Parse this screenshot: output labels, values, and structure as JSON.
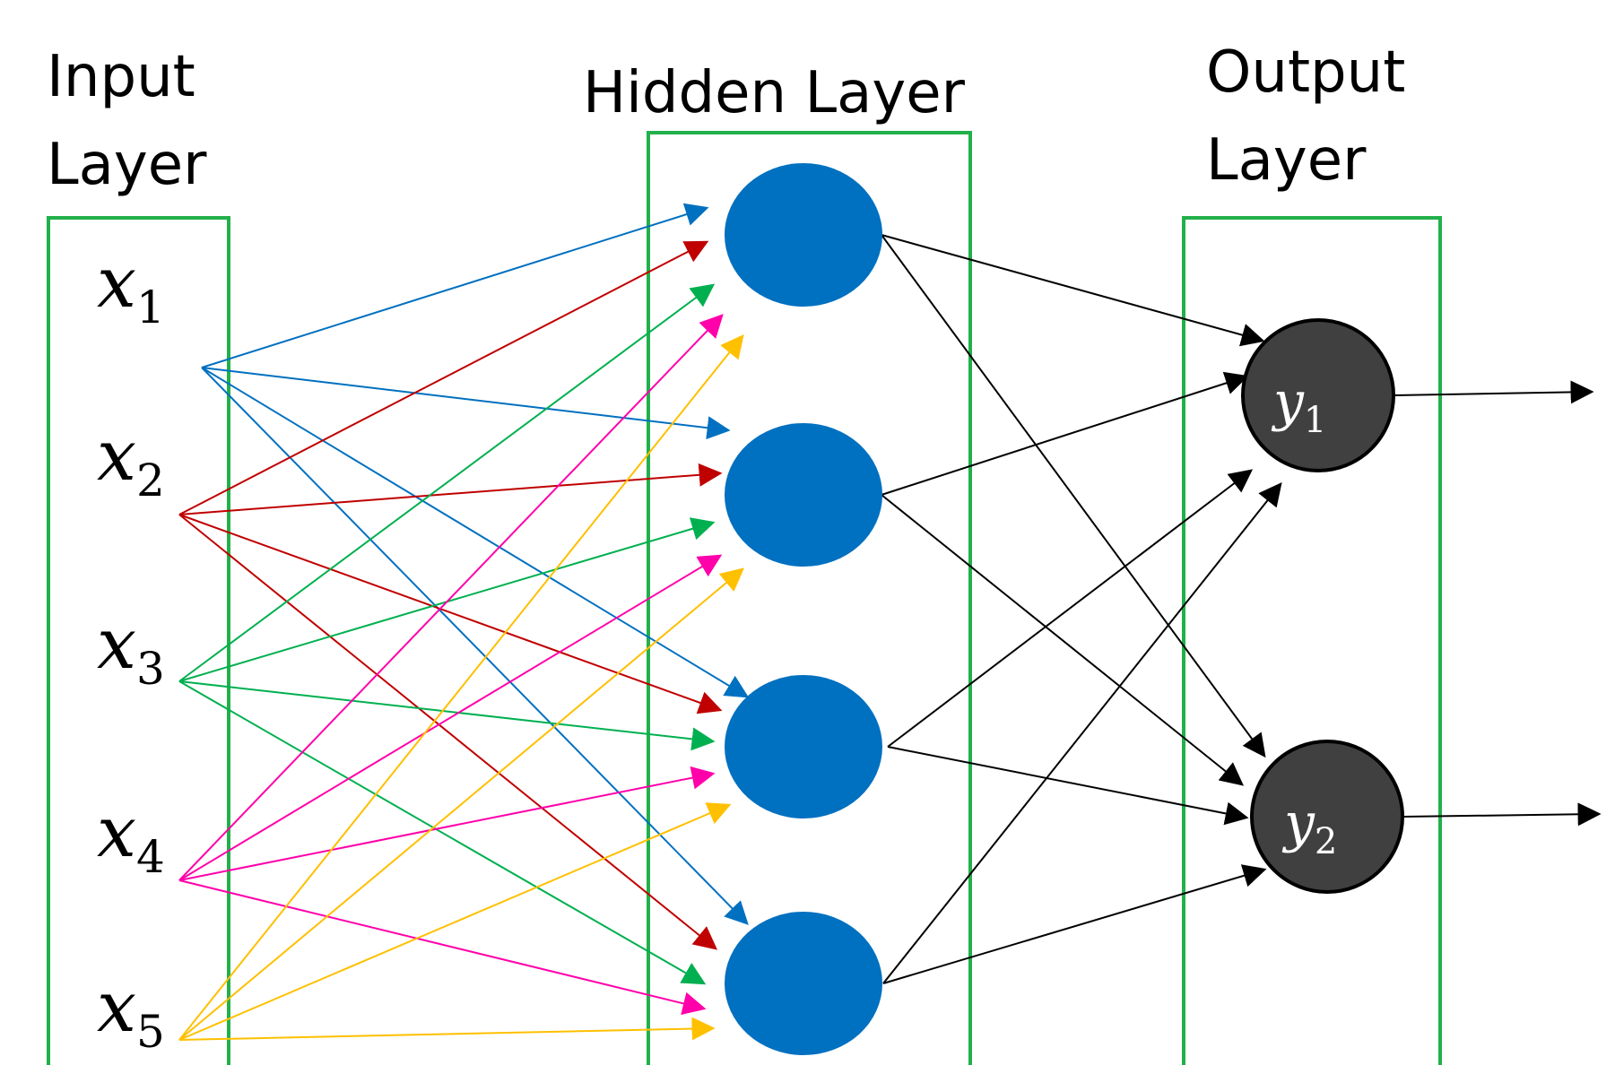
{
  "colors": {
    "frame": "#22b04b",
    "hidden_node": "#0070c0",
    "output_node": "#404040",
    "output_stroke": "#000000",
    "black_edge": "#000000",
    "input_edge_colors": [
      "#0070c0",
      "#c00000",
      "#00b050",
      "#ff00aa",
      "#ffc000"
    ]
  },
  "layers": {
    "input": {
      "title_line1": "Input",
      "title_line2": "Layer"
    },
    "hidden": {
      "title": "Hidden Layer"
    },
    "output": {
      "title_line1": "Output",
      "title_line2": "Layer"
    }
  },
  "inputs": [
    {
      "symbol": "x",
      "subscript": "1"
    },
    {
      "symbol": "x",
      "subscript": "2"
    },
    {
      "symbol": "x",
      "subscript": "3"
    },
    {
      "symbol": "x",
      "subscript": "4"
    },
    {
      "symbol": "x",
      "subscript": "5"
    }
  ],
  "hidden_node_count": 4,
  "outputs": [
    {
      "symbol": "y",
      "subscript": "1"
    },
    {
      "symbol": "y",
      "subscript": "2"
    }
  ]
}
